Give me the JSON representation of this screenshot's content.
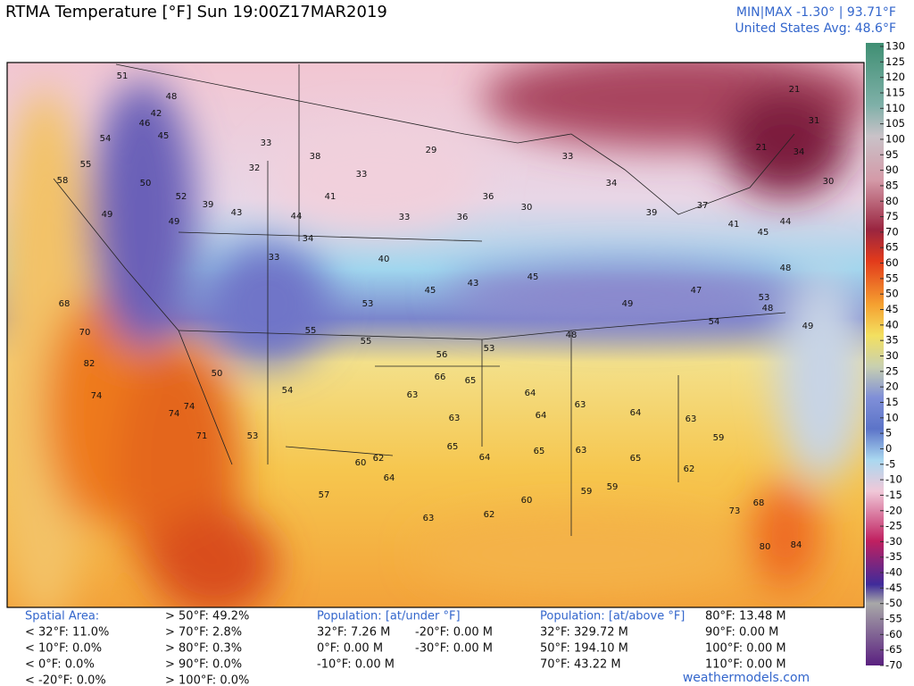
{
  "header": {
    "title": "RTMA Temperature [°F]  Sun 19:00Z17MAR2019",
    "minmax": "MIN|MAX -1.30°  |  93.71°F",
    "average": "United States Avg: 48.6°F"
  },
  "colorbar": {
    "ticks": [
      130,
      125,
      120,
      115,
      110,
      105,
      100,
      95,
      90,
      85,
      80,
      75,
      70,
      65,
      60,
      55,
      50,
      45,
      40,
      35,
      30,
      25,
      20,
      15,
      10,
      5,
      0,
      -5,
      -10,
      -15,
      -20,
      -25,
      -30,
      -35,
      -40,
      -45,
      -50,
      -55,
      -60,
      -65,
      -70
    ]
  },
  "map": {
    "labels": [
      51,
      48,
      42,
      46,
      45,
      54,
      55,
      58,
      49,
      50,
      52,
      39,
      49,
      43,
      33,
      32,
      38,
      41,
      44,
      34,
      33,
      33,
      33,
      29,
      36,
      36,
      30,
      33,
      34,
      39,
      37,
      41,
      44,
      40,
      45,
      43,
      45,
      53,
      55,
      55,
      53,
      56,
      48,
      49,
      47,
      54,
      53,
      68,
      70,
      82,
      74,
      74,
      74,
      71,
      53,
      50,
      54,
      66,
      65,
      63,
      63,
      64,
      64,
      63,
      64,
      63,
      59,
      62,
      64,
      65,
      64,
      65,
      63,
      65,
      62,
      57,
      60,
      63,
      62,
      60,
      59,
      59,
      73,
      80,
      84,
      68,
      30,
      31,
      21,
      34,
      45,
      48,
      48,
      49,
      21
    ]
  },
  "stats": {
    "spatial_title": "Spatial Area:",
    "spatial_below": [
      "< 32°F: 11.0%",
      "< 10°F: 0.0%",
      "< 0°F: 0.0%",
      "< -20°F: 0.0%"
    ],
    "spatial_above": [
      "> 50°F: 49.2%",
      "> 70°F: 2.8%",
      "> 80°F: 0.3%",
      "> 90°F: 0.0%",
      "> 100°F: 0.0%"
    ],
    "pop_under_title": "Population: [at/under °F]",
    "pop_under_a": [
      "32°F: 7.26 M",
      "0°F: 0.00 M",
      "-10°F: 0.00 M"
    ],
    "pop_under_b": [
      "-20°F: 0.00 M",
      "-30°F: 0.00 M"
    ],
    "pop_above_title": "Population: [at/above °F]",
    "pop_above_a": [
      "32°F: 329.72 M",
      "50°F: 194.10 M",
      "70°F: 43.22 M"
    ],
    "pop_above_b": [
      "80°F: 13.48 M",
      "90°F: 0.00 M",
      "100°F: 0.00 M",
      "110°F: 0.00 M"
    ]
  },
  "footer": "weathermodels.com"
}
